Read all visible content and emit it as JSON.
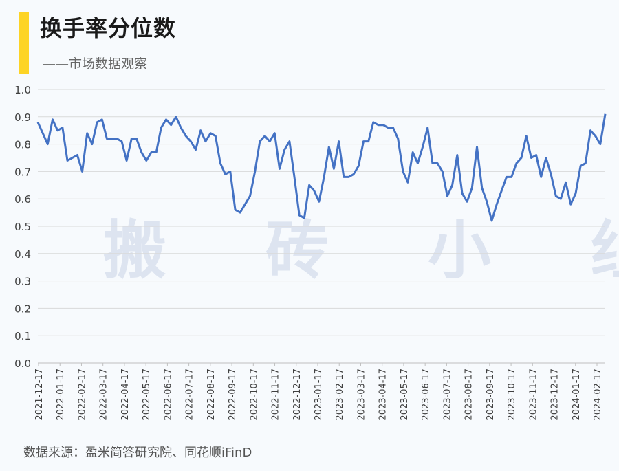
{
  "header": {
    "title": "换手率分位数",
    "subtitle": "——市场数据观察"
  },
  "watermark": "搬 砖 小 组",
  "source": "数据来源：盈米简答研究院、同花顺iFinD",
  "colors": {
    "accent": "#fdd426",
    "line": "#4472c4",
    "grid": "#d9d9d9"
  },
  "chart_data": {
    "type": "line",
    "ylim": [
      0,
      1.0
    ],
    "yticks": [
      "0.0",
      "0.1",
      "0.2",
      "0.3",
      "0.4",
      "0.5",
      "0.6",
      "0.7",
      "0.8",
      "0.9",
      "1.0"
    ],
    "xtick_labels": [
      "2021-12-17",
      "2022-01-17",
      "2022-02-17",
      "2022-03-17",
      "2022-04-17",
      "2022-05-17",
      "2022-06-17",
      "2022-07-17",
      "2022-08-17",
      "2022-09-17",
      "2022-10-17",
      "2022-11-17",
      "2022-12-17",
      "2023-01-17",
      "2023-02-17",
      "2023-03-17",
      "2023-04-17",
      "2023-05-17",
      "2023-06-17",
      "2023-07-17",
      "2023-08-17",
      "2023-09-17",
      "2023-10-17",
      "2023-11-17",
      "2023-12-17",
      "2024-01-17",
      "2024-02-17"
    ],
    "grid": "horizontal",
    "series": [
      {
        "values": [
          0.88,
          0.84,
          0.8,
          0.89,
          0.85,
          0.86,
          0.74,
          0.75,
          0.76,
          0.7,
          0.84,
          0.8,
          0.88,
          0.89,
          0.82,
          0.82,
          0.82,
          0.81,
          0.74,
          0.82,
          0.82,
          0.77,
          0.74,
          0.77,
          0.77,
          0.86,
          0.89,
          0.87,
          0.9,
          0.86,
          0.83,
          0.81,
          0.78,
          0.85,
          0.81,
          0.84,
          0.83,
          0.73,
          0.69,
          0.7,
          0.56,
          0.55,
          0.58,
          0.61,
          0.7,
          0.81,
          0.83,
          0.81,
          0.84,
          0.71,
          0.78,
          0.81,
          0.68,
          0.54,
          0.53,
          0.65,
          0.63,
          0.59,
          0.68,
          0.79,
          0.71,
          0.81,
          0.68,
          0.68,
          0.69,
          0.72,
          0.81,
          0.81,
          0.88,
          0.87,
          0.87,
          0.86,
          0.86,
          0.82,
          0.7,
          0.66,
          0.77,
          0.73,
          0.79,
          0.86,
          0.73,
          0.73,
          0.7,
          0.61,
          0.65,
          0.76,
          0.62,
          0.59,
          0.64,
          0.79,
          0.64,
          0.59,
          0.52,
          0.58,
          0.63,
          0.68,
          0.68,
          0.73,
          0.75,
          0.83,
          0.75,
          0.76,
          0.68,
          0.75,
          0.69,
          0.61,
          0.6,
          0.66,
          0.58,
          0.62,
          0.72,
          0.73,
          0.85,
          0.83,
          0.8,
          0.91
        ]
      }
    ]
  }
}
